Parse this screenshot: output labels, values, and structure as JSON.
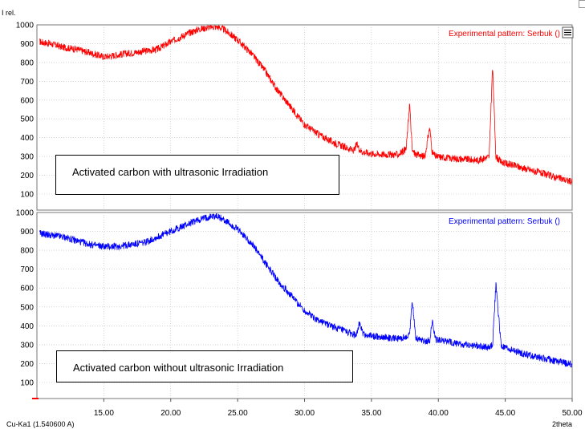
{
  "chart_data": [
    {
      "type": "line",
      "title": "",
      "xlabel": "2theta",
      "ylabel": "I rel.",
      "xlim": [
        10,
        50
      ],
      "ylim": [
        60,
        1000
      ],
      "x_ticks": [
        "15.00",
        "20.00",
        "25.00",
        "30.00",
        "35.00",
        "40.00",
        "45.00",
        "50.00"
      ],
      "y_ticks": [
        "100",
        "200",
        "300",
        "400",
        "500",
        "600",
        "700",
        "800",
        "900",
        "1000"
      ],
      "legend": "top-right",
      "grid": true,
      "series": [
        {
          "name": "Experimental pattern: Serbuk ()",
          "color": "#ff0000",
          "x": [
            10.2,
            11,
            12,
            13,
            14,
            15,
            16,
            17,
            18,
            19,
            20,
            21,
            22,
            23,
            23.5,
            24,
            25,
            26,
            27,
            28,
            29,
            30,
            31,
            32,
            33,
            33.7,
            33.9,
            34.1,
            34.3,
            35,
            36,
            37,
            37.6,
            37.85,
            38.05,
            38.3,
            39,
            39.35,
            39.55,
            39.8,
            41,
            42,
            43,
            43.8,
            44.05,
            44.3,
            44.7,
            46,
            47,
            48,
            49,
            50
          ],
          "y": [
            910,
            900,
            880,
            870,
            850,
            830,
            840,
            850,
            860,
            870,
            910,
            945,
            975,
            990,
            990,
            975,
            920,
            850,
            760,
            650,
            560,
            470,
            420,
            380,
            350,
            330,
            365,
            340,
            325,
            315,
            310,
            310,
            340,
            585,
            330,
            310,
            300,
            455,
            320,
            300,
            290,
            285,
            280,
            300,
            780,
            300,
            270,
            245,
            225,
            205,
            185,
            165
          ]
        },
        {
          "name": "Experimental pattern: Serbuk ()",
          "color": "#0000ff",
          "x": [
            10.2,
            11,
            12,
            13,
            14,
            15,
            16,
            17,
            18,
            19,
            20,
            21,
            22,
            23,
            23.5,
            24,
            25,
            26,
            27,
            28,
            29,
            30,
            31,
            32,
            33,
            33.8,
            34.1,
            34.4,
            35,
            36,
            37,
            37.6,
            37.85,
            38.05,
            38.3,
            39,
            39.35,
            39.55,
            39.8,
            41,
            42,
            43,
            43.8,
            44.05,
            44.3,
            44.7,
            46,
            47,
            48,
            49,
            50
          ],
          "y": [
            890,
            880,
            870,
            850,
            830,
            820,
            820,
            830,
            840,
            870,
            900,
            930,
            960,
            980,
            980,
            960,
            910,
            840,
            740,
            640,
            560,
            480,
            430,
            400,
            370,
            350,
            410,
            355,
            345,
            340,
            330,
            340,
            355,
            540,
            340,
            320,
            320,
            425,
            330,
            310,
            300,
            295,
            285,
            300,
            620,
            290,
            260,
            240,
            225,
            210,
            195
          ]
        }
      ],
      "annotations": [
        "Activated carbon with ultrasonic Irradiation",
        "Activated carbon without ultrasonic Irradiation"
      ],
      "footer_note": "Cu-Ka1 (1.540600 A)"
    }
  ]
}
